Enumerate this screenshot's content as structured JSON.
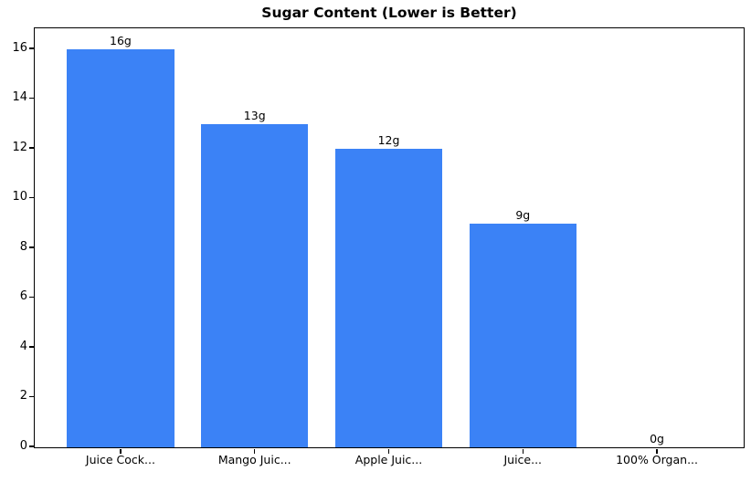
{
  "chart_data": {
    "type": "bar",
    "title": "Sugar Content (Lower is Better)",
    "categories": [
      "Juice Cock...",
      "Mango Juic...",
      "Apple Juic...",
      "Juice...",
      "100% Organ..."
    ],
    "values": [
      16,
      13,
      12,
      9,
      0
    ],
    "bar_labels": [
      "16g",
      "13g",
      "12g",
      "9g",
      "0g"
    ],
    "xlabel": "",
    "ylabel": "",
    "yticks": [
      0,
      2,
      4,
      6,
      8,
      10,
      12,
      14,
      16
    ],
    "ylim": [
      0,
      16.8
    ],
    "xlim": [
      -0.64,
      4.64
    ],
    "bar_width_ratio": 0.8,
    "bar_color": "#3b82f6",
    "axis_color": "#000000",
    "background_color": "#ffffff",
    "grid": false,
    "legend": "none"
  }
}
